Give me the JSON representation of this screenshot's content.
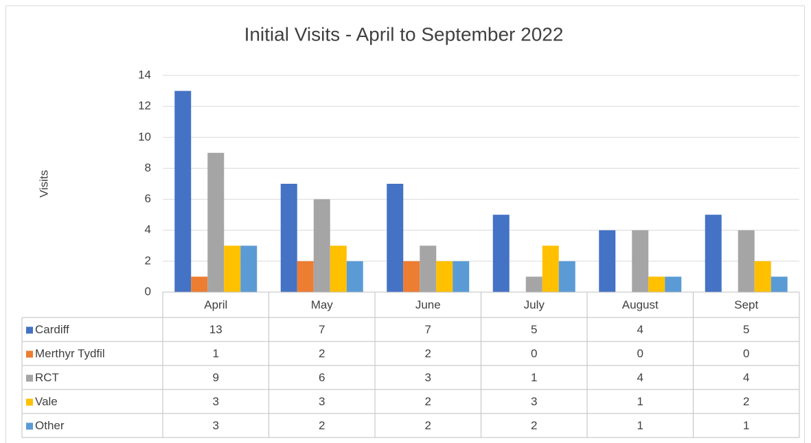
{
  "chart_data": {
    "type": "bar",
    "title": "Initial Visits - April to September 2022",
    "y_label": "Visits",
    "categories": [
      "April",
      "May",
      "June",
      "July",
      "August",
      "Sept"
    ],
    "series": [
      {
        "name": "Cardiff",
        "color": "#4472c4",
        "values": [
          13,
          7,
          7,
          5,
          4,
          5
        ]
      },
      {
        "name": "Merthyr Tydfil",
        "color": "#ed7d31",
        "values": [
          1,
          2,
          2,
          0,
          0,
          0
        ]
      },
      {
        "name": "RCT",
        "color": "#a5a5a5",
        "values": [
          9,
          6,
          3,
          1,
          4,
          4
        ]
      },
      {
        "name": "Vale",
        "color": "#ffc000",
        "values": [
          3,
          3,
          2,
          3,
          1,
          2
        ]
      },
      {
        "name": "Other",
        "color": "#5b9bd5",
        "values": [
          3,
          2,
          2,
          2,
          1,
          1
        ]
      }
    ],
    "ylim": [
      0,
      14
    ],
    "yticks": [
      0,
      2,
      4,
      6,
      8,
      10,
      12,
      14
    ],
    "grid": true,
    "data_table": true
  }
}
